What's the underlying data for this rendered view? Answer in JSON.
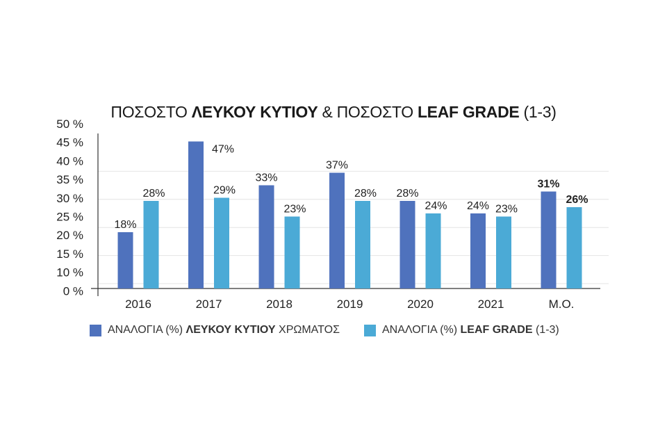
{
  "title": {
    "part1": "ΠΟΣΟΣΤΟ ",
    "part2": "ΛΕΥΚΟΥ ΚΥΤΙΟΥ",
    "part3": " & ΠΟΣΟΣΤΟ ",
    "part4": "LEAF GRADE",
    "part5": " (1-3)"
  },
  "legend": [
    {
      "pre": "ΑΝΑΛΟΓΙΑ (%) ",
      "bold": "ΛΕΥΚΟΥ ΚΥΤΙΟΥ",
      "post": " ΧΡΩΜΑΤΟΣ",
      "color": "#4f72bd"
    },
    {
      "pre": "ΑΝΑΛΟΓΙΑ (%) ",
      "bold": "LEAF GRADE",
      "post": " (1-3)",
      "color": "#4baad6"
    }
  ],
  "chart_data": {
    "type": "bar",
    "categories": [
      "2016",
      "2017",
      "2018",
      "2019",
      "2020",
      "2021",
      "Μ.Ο."
    ],
    "series": [
      {
        "name": "ΑΝΑΛΟΓΙΑ (%) ΛΕΥΚΟΥ ΚΥΤΙΟΥ ΧΡΩΜΑΤΟΣ",
        "values": [
          18,
          47,
          33,
          37,
          28,
          24,
          31
        ],
        "color": "#4f72bd"
      },
      {
        "name": "ΑΝΑΛΟΓΙΑ (%) LEAF GRADE (1-3)",
        "values": [
          28,
          29,
          23,
          28,
          24,
          23,
          26
        ],
        "color": "#4baad6"
      }
    ],
    "data_labels": [
      [
        "18%",
        "47%",
        "33%",
        "37%",
        "28%",
        "24%",
        "31%"
      ],
      [
        "28%",
        "29%",
        "23%",
        "28%",
        "24%",
        "23%",
        "26%"
      ]
    ],
    "bold_categories": [
      "Μ.Ο."
    ],
    "yticks": [
      "0 %",
      "10 %",
      "15 %",
      "20 %",
      "25 %",
      "30 %",
      "35 %",
      "40 %",
      "45 %",
      "50 %"
    ],
    "ylim": [
      0,
      50
    ],
    "grid": true,
    "legend_position": "bottom"
  }
}
